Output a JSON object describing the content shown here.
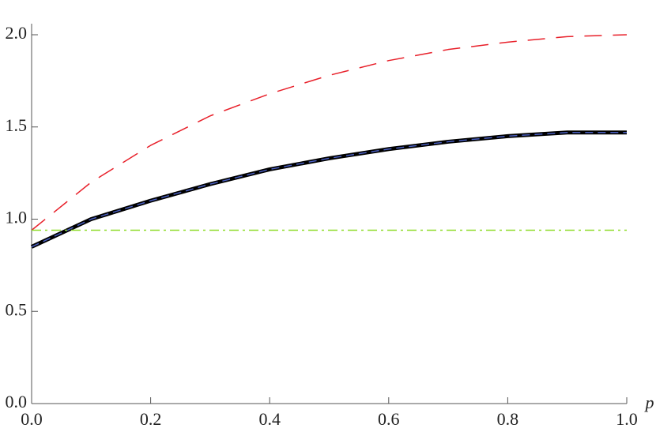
{
  "chart_data": {
    "type": "line",
    "x_label": "p",
    "x": [
      0,
      0.1,
      0.2,
      0.3,
      0.4,
      0.5,
      0.6,
      0.7,
      0.8,
      0.9,
      1.0
    ],
    "series": [
      {
        "color": "#e8202a",
        "dash": "22,14",
        "width": 1.5,
        "values": [
          0.94,
          1.2,
          1.4,
          1.56,
          1.68,
          1.78,
          1.86,
          1.92,
          1.96,
          1.99,
          2.0
        ]
      },
      {
        "color": "#000000",
        "dash": "none",
        "width": 5,
        "values": [
          0.85,
          1.0,
          1.1,
          1.19,
          1.27,
          1.33,
          1.38,
          1.42,
          1.45,
          1.47,
          1.47
        ]
      },
      {
        "color": "#4a5fc0",
        "dash": "10,6",
        "width": 1.5,
        "values": [
          0.85,
          1.0,
          1.1,
          1.19,
          1.27,
          1.33,
          1.38,
          1.42,
          1.45,
          1.47,
          1.47
        ]
      },
      {
        "color": "#8fdc2a",
        "dash": "12,5,3,5",
        "width": 1.5,
        "values": [
          0.94,
          0.94,
          0.94,
          0.94,
          0.94,
          0.94,
          0.94,
          0.94,
          0.94,
          0.94,
          0.94
        ]
      }
    ],
    "xlim": [
      0,
      1
    ],
    "ylim": [
      0,
      2
    ],
    "xticks": [
      {
        "value": 0,
        "label": "0.0"
      },
      {
        "value": 0.2,
        "label": "0.2"
      },
      {
        "value": 0.4,
        "label": "0.4"
      },
      {
        "value": 0.6,
        "label": "0.6"
      },
      {
        "value": 0.8,
        "label": "0.8"
      },
      {
        "value": 1,
        "label": "1.0"
      }
    ],
    "yticks": [
      {
        "value": 0,
        "label": "0.0"
      },
      {
        "value": 0.5,
        "label": "0.5"
      },
      {
        "value": 1,
        "label": "1.0"
      },
      {
        "value": 1.5,
        "label": "1.5"
      },
      {
        "value": 2,
        "label": "2.0"
      }
    ]
  }
}
